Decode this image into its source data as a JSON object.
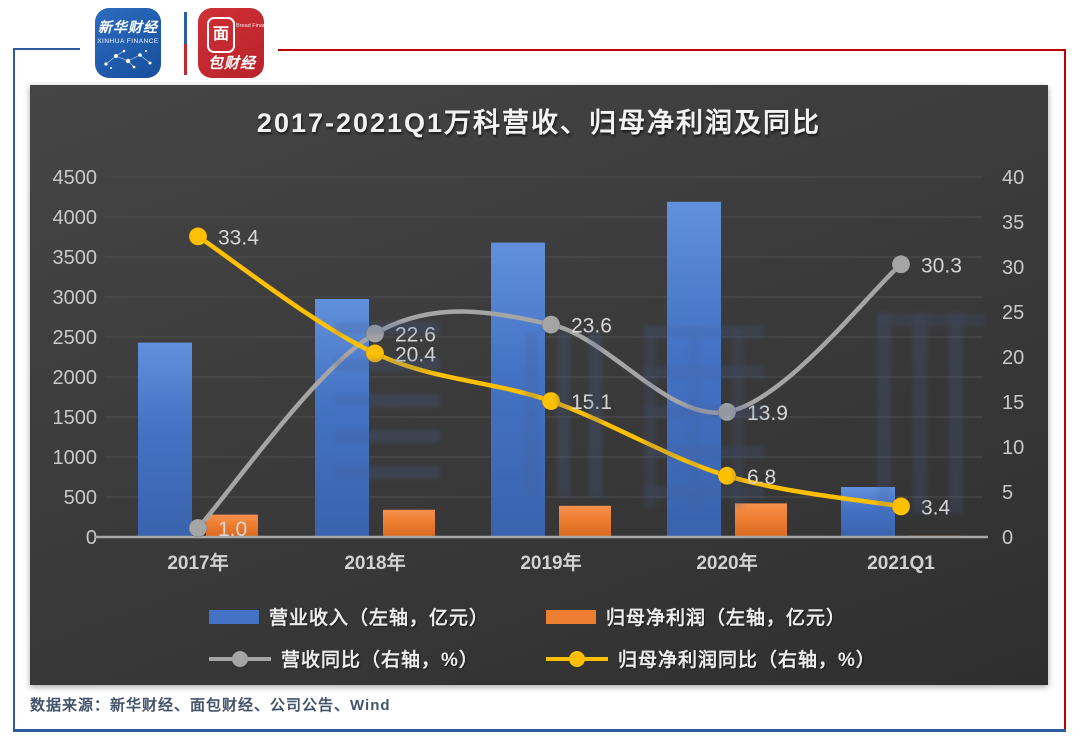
{
  "header": {
    "xinhua_logo": {
      "title": "新华财经",
      "title_accent": "经",
      "subtitle": "XINHUA FINANCE"
    },
    "bread_logo": {
      "box_char": "面",
      "rest": "包财经",
      "subtitle": "Bread Finance"
    }
  },
  "footer": {
    "source": "数据来源：新华财经、面包财经、公司公告、Wind"
  },
  "colors": {
    "frame_blue": "#2f5b9b",
    "frame_red": "#c00000",
    "panel_bg": "#3c3c3c",
    "gridline": "#4e4e4e",
    "axis_text": "#c9c9c9",
    "baseline": "#a8a8a8",
    "revenue_bar": "#4472c4",
    "profit_bar": "#ed7d31",
    "revenue_yoy_line": "#a5a5a5",
    "profit_yoy_line": "#ffc000",
    "data_label": "#d6d6d6",
    "footer_text": "#44546a"
  },
  "chart_data": {
    "type": "combo: bar + line (dual axis)",
    "title": "2017-2021Q1万科营收、归母净利润及同比",
    "categories": [
      "2017年",
      "2018年",
      "2019年",
      "2020年",
      "2021Q1"
    ],
    "series": [
      {
        "key": "revenue",
        "name": "营业收入（左轴，亿元）",
        "type": "bar",
        "axis": "left",
        "color": "#4472c4",
        "values": [
          2430,
          2975,
          3680,
          4190,
          625
        ],
        "values_estimated": true
      },
      {
        "key": "net-profit",
        "name": "归母净利润（左轴，亿元）",
        "type": "bar",
        "axis": "left",
        "color": "#ed7d31",
        "values": [
          280,
          340,
          390,
          420,
          15
        ],
        "values_estimated": true
      },
      {
        "key": "revenue-yoy",
        "name": "营收同比（右轴，%）",
        "type": "line",
        "axis": "right",
        "color": "#a5a5a5",
        "values": [
          1.0,
          22.6,
          23.6,
          13.9,
          30.3
        ],
        "labels": [
          "1.0",
          "22.6",
          "23.6",
          "13.9",
          "30.3"
        ]
      },
      {
        "key": "net-profit-yoy",
        "name": "归母净利润同比（右轴，%）",
        "type": "line",
        "axis": "right",
        "color": "#ffc000",
        "values": [
          33.4,
          20.4,
          15.1,
          6.8,
          3.4
        ],
        "labels": [
          "33.4",
          "20.4",
          "15.1",
          "6.8",
          "3.4"
        ]
      }
    ],
    "left_axis": {
      "min": 0,
      "max": 4500,
      "step": 500,
      "ticks": [
        "0",
        "500",
        "1000",
        "1500",
        "2000",
        "2500",
        "3000",
        "3500",
        "4000",
        "4500"
      ]
    },
    "right_axis": {
      "min": 0,
      "max": 40,
      "step": 5,
      "ticks": [
        "0",
        "5",
        "10",
        "15",
        "20",
        "25",
        "30",
        "35",
        "40"
      ]
    },
    "grid": true,
    "smooth_lines": true,
    "legend_position": "bottom"
  }
}
